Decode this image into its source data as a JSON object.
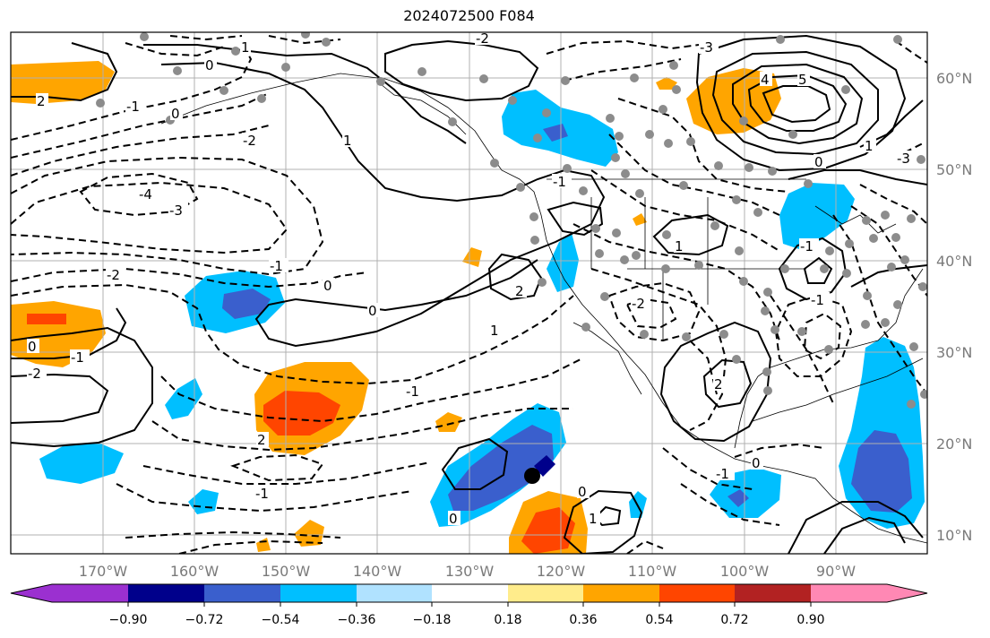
{
  "title": "2024072500 F084",
  "longitude_labels": [
    "170°W",
    "160°W",
    "150°W",
    "140°W",
    "130°W",
    "120°W",
    "110°W",
    "100°W",
    "90°W"
  ],
  "latitude_labels": [
    "60°N",
    "50°N",
    "40°N",
    "30°N",
    "20°N",
    "10°N"
  ],
  "colorbar": {
    "tick_labels": [
      "−0.90",
      "−0.72",
      "−0.54",
      "−0.36",
      "−0.18",
      "0.18",
      "0.36",
      "0.54",
      "0.72",
      "0.90"
    ],
    "colors": [
      "#9b30d0",
      "#00008b",
      "#3a5fcd",
      "#00bfff",
      "#b0e2ff",
      "#ffffff",
      "#ffec8b",
      "#ffa500",
      "#ff4500",
      "#b22222",
      "#ff88b4"
    ]
  },
  "contour_labels": {
    "c1": "0",
    "c2": "1",
    "c3": "2",
    "c4": "-4",
    "c5": "-3",
    "c6": "-2",
    "c7": "-1",
    "c8": "0",
    "c9": "1",
    "c10": "-2",
    "c11": "-1",
    "c12": "0",
    "c13": "-1",
    "c14": "-2",
    "c15": "2",
    "c16": "-1",
    "c17": "-2",
    "c18": "0",
    "c19": "0",
    "c20": "-1",
    "c21": "1",
    "c22": "0",
    "c23": "5",
    "c24": "4",
    "c25": "-3",
    "c26": "-1",
    "c27": "0",
    "c28": "1",
    "c29": "-1",
    "c30": "2",
    "c31": "-2",
    "c32": "1",
    "c33": "0",
    "c34": "-1",
    "c35": "2",
    "c36": "0",
    "c37": "-3",
    "c38": "1",
    "c39": "-1"
  },
  "colors": {
    "frame": "#000000",
    "grid": "#b0b0b0",
    "tick_text": "#7a7a7a"
  }
}
